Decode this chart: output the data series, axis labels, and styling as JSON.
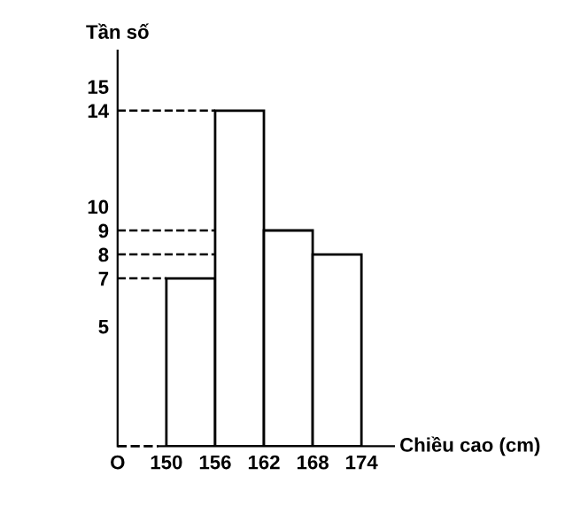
{
  "chart_data": {
    "type": "histogram",
    "xlabel": "Chiều cao (cm)",
    "ylabel": "Tần số",
    "bins": [
      150,
      156,
      162,
      168,
      174
    ],
    "values": [
      7,
      14,
      9,
      8
    ],
    "color": "#ffffff",
    "xlim": [
      144,
      178
    ],
    "ylim": [
      0,
      16.5
    ],
    "xticks": [
      {
        "value": 144,
        "label": "O"
      },
      150,
      156,
      162,
      168,
      174
    ],
    "yticks": [
      5,
      7,
      8,
      9,
      10,
      14,
      15
    ],
    "ref_lines": [
      {
        "axis": "y",
        "value": 7,
        "label": null,
        "line_style": "dashed"
      },
      {
        "axis": "y",
        "value": 14,
        "label": null,
        "line_style": "dashed"
      },
      {
        "axis": "y",
        "value": 9,
        "label": null,
        "line_style": "dashed"
      },
      {
        "axis": "y",
        "value": 8,
        "label": null,
        "line_style": "dashed"
      }
    ],
    "grid": false,
    "legend": false
  }
}
